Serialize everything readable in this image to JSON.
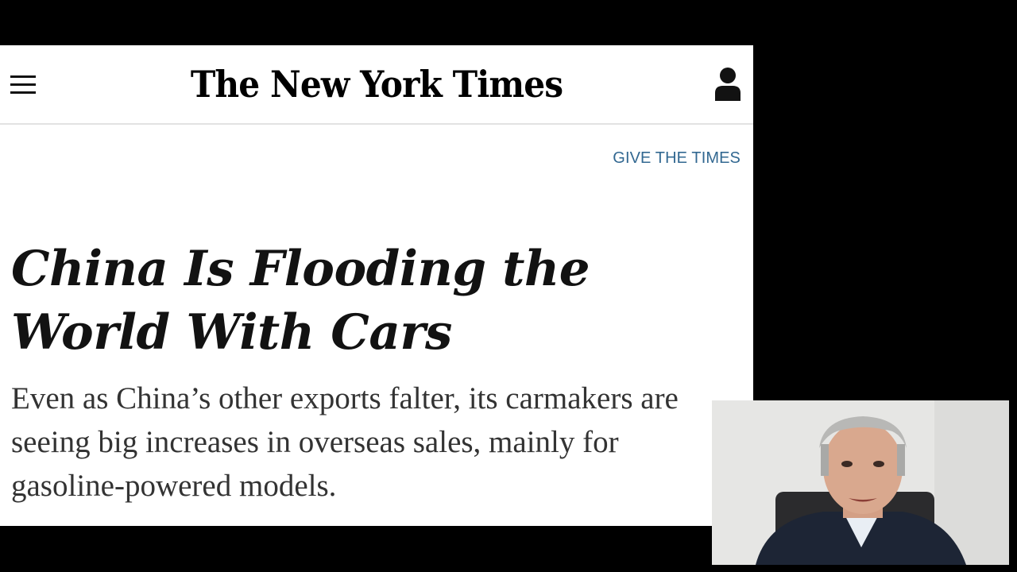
{
  "masthead": {
    "logo_text": "The New York Times",
    "menu_icon": "hamburger-menu-icon",
    "account_icon": "user-account-icon"
  },
  "promo": {
    "give_link": "GIVE THE TIMES"
  },
  "article": {
    "headline": "China Is Flooding the World With Cars",
    "summary": "Even as China’s other exports falter, its carmakers are seeing big increases in overseas sales, mainly for gasoline-powered models."
  },
  "colors": {
    "background": "#000000",
    "page": "#ffffff",
    "link": "#326891",
    "text": "#121212"
  }
}
